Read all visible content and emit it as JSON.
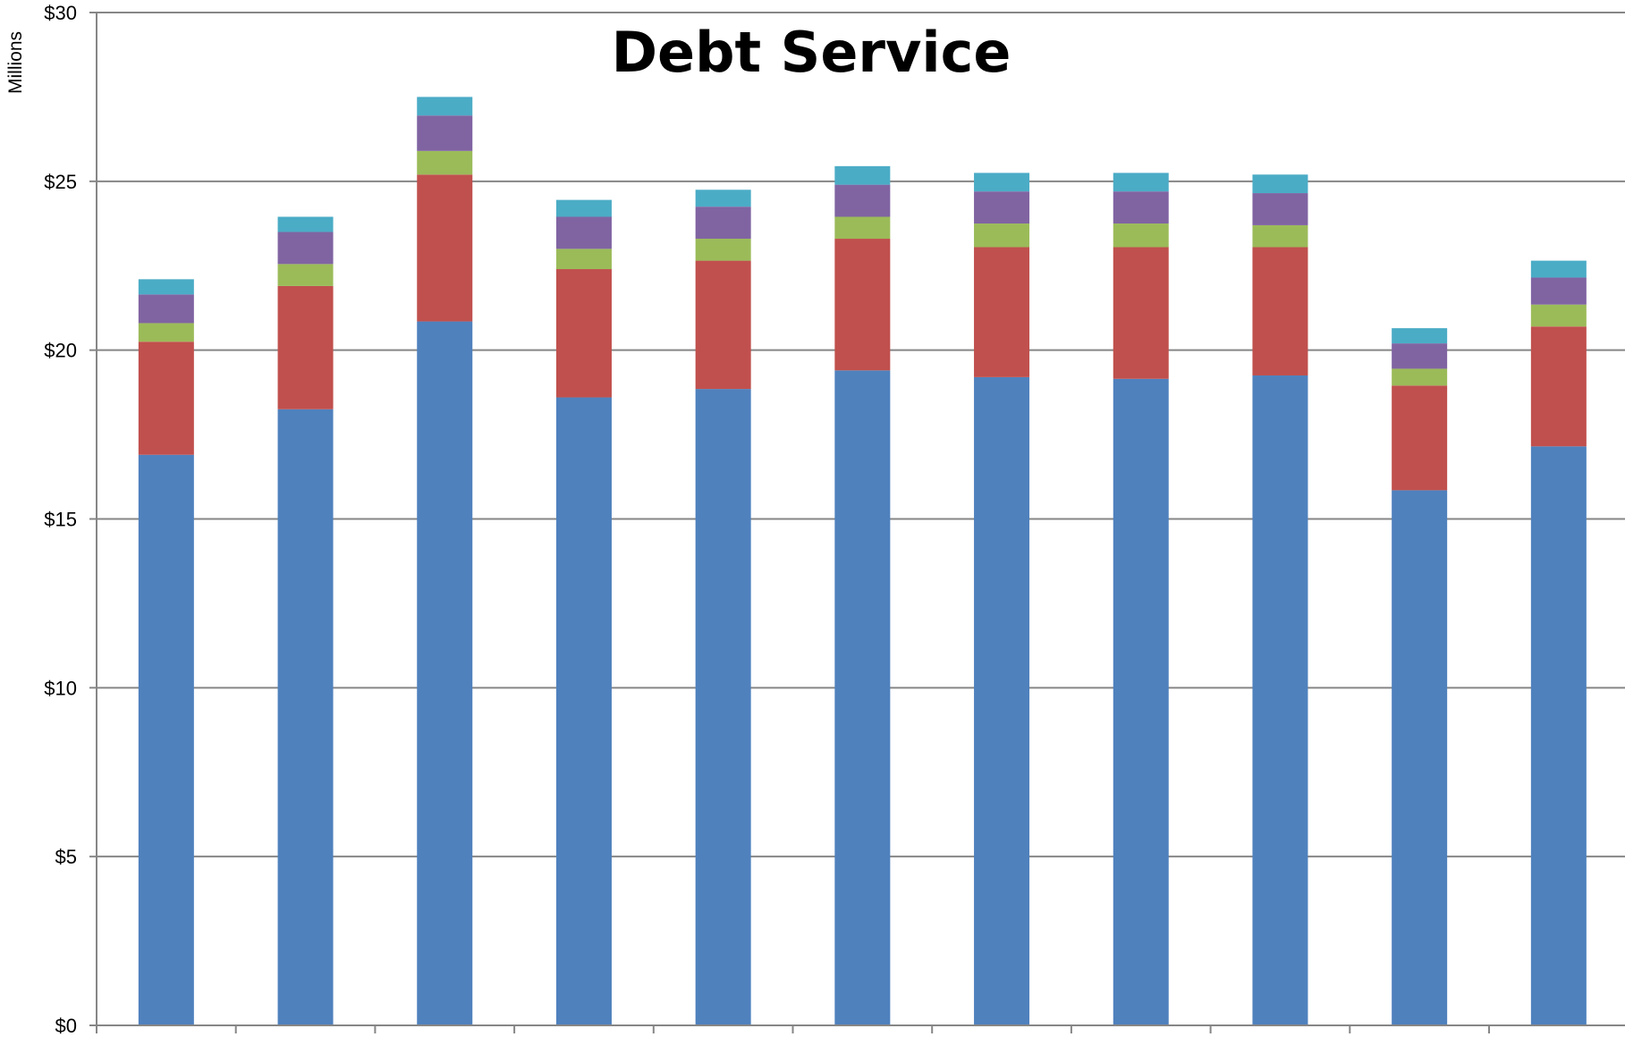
{
  "chart_data": {
    "type": "bar",
    "stacked": true,
    "title": "Debt Service",
    "ylabel": "Millions",
    "xlabel": "",
    "ylim": [
      0,
      30
    ],
    "yticks": [
      0,
      5,
      10,
      15,
      20,
      25,
      30
    ],
    "ytick_labels": [
      "$0",
      "$5",
      "$10",
      "$15",
      "$20",
      "$25",
      "$30"
    ],
    "grid": true,
    "legend": "none",
    "categories": [
      "",
      "",
      "",
      "",
      "",
      "",
      "",
      "",
      "",
      "",
      ""
    ],
    "series": [
      {
        "color": "#4f81bd",
        "values": [
          16.9,
          18.25,
          20.85,
          18.6,
          18.85,
          19.4,
          19.2,
          19.15,
          19.25,
          15.85,
          17.15
        ]
      },
      {
        "color": "#c0504d",
        "values": [
          3.35,
          3.65,
          4.35,
          3.8,
          3.8,
          3.9,
          3.85,
          3.9,
          3.8,
          3.1,
          3.55
        ]
      },
      {
        "color": "#9bbb59",
        "values": [
          0.55,
          0.65,
          0.7,
          0.6,
          0.65,
          0.65,
          0.7,
          0.7,
          0.65,
          0.5,
          0.65
        ]
      },
      {
        "color": "#8064a2",
        "values": [
          0.85,
          0.95,
          1.05,
          0.95,
          0.95,
          0.95,
          0.95,
          0.95,
          0.95,
          0.75,
          0.8
        ]
      },
      {
        "color": "#4bacc6",
        "values": [
          0.45,
          0.45,
          0.55,
          0.5,
          0.5,
          0.55,
          0.55,
          0.55,
          0.55,
          0.45,
          0.5
        ]
      }
    ]
  }
}
